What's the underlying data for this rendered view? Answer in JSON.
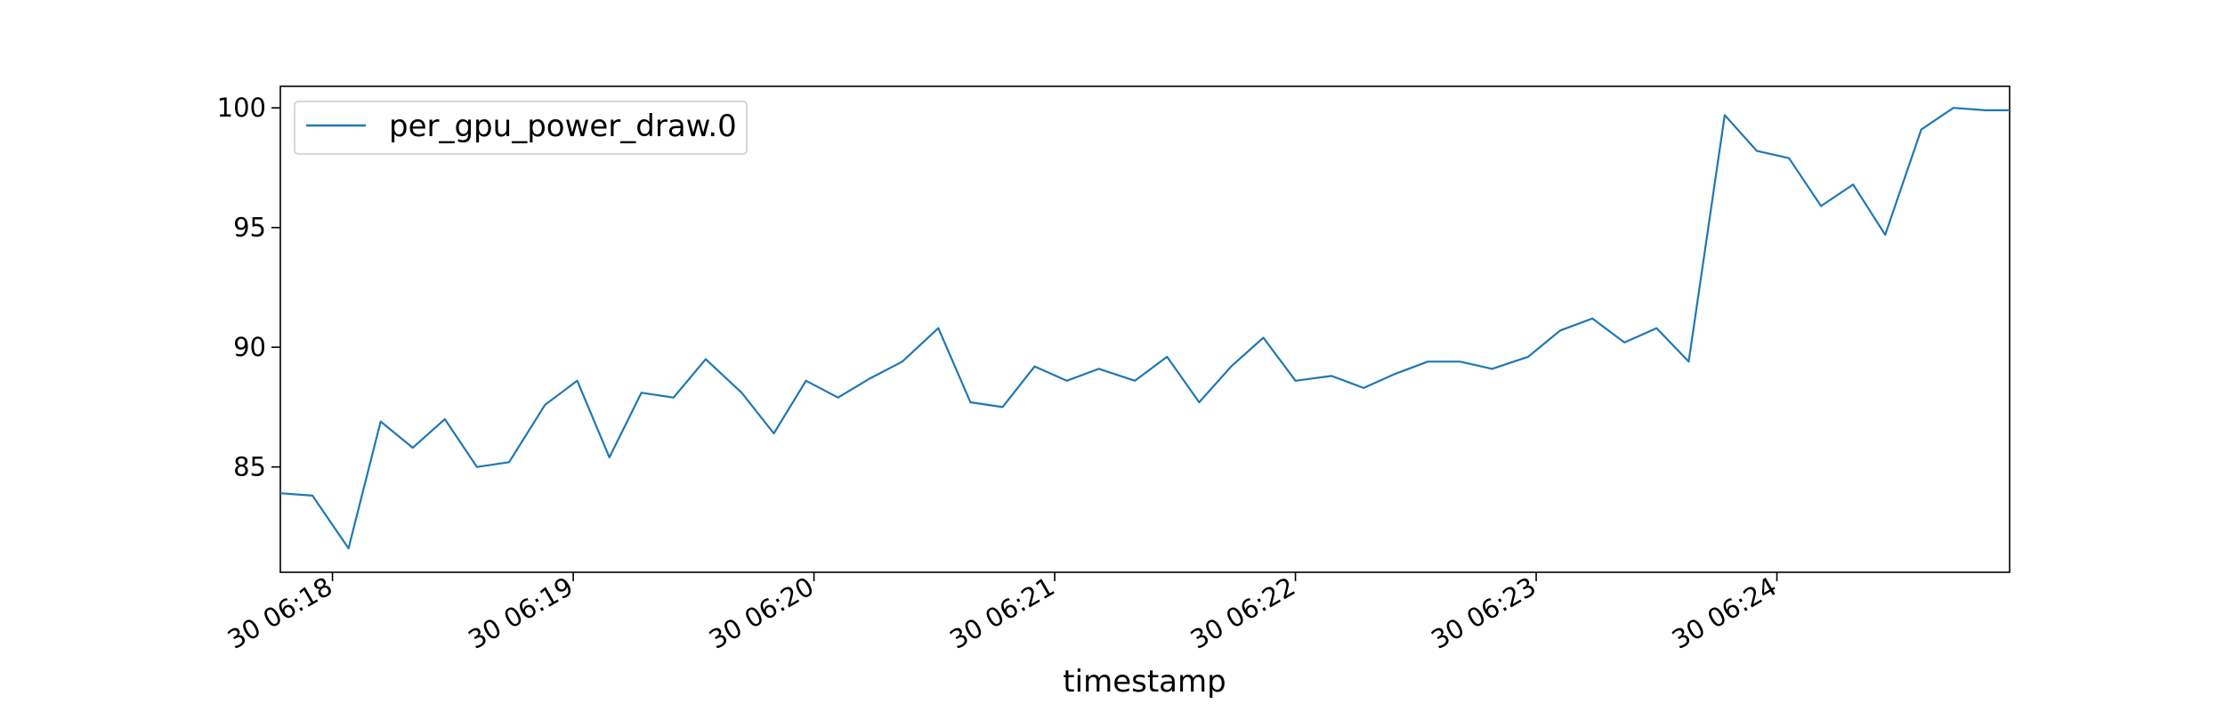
{
  "chart_data": {
    "type": "line",
    "title": "",
    "xlabel": "timestamp",
    "ylabel": "",
    "grid": false,
    "legend_placement": "top-left",
    "colors": {
      "series": "#1f77b4",
      "axes": "#000000",
      "background": "#ffffff"
    },
    "xlim": [
      "30 06:17:47",
      "30 06:24:58"
    ],
    "ylim": [
      80.6,
      100.9
    ],
    "x_ticks": [
      {
        "value": "30 06:18:00",
        "label": "30 06:18"
      },
      {
        "value": "30 06:19:00",
        "label": "30 06:19"
      },
      {
        "value": "30 06:20:00",
        "label": "30 06:20"
      },
      {
        "value": "30 06:21:00",
        "label": "30 06:21"
      },
      {
        "value": "30 06:22:00",
        "label": "30 06:22"
      },
      {
        "value": "30 06:23:00",
        "label": "30 06:23"
      },
      {
        "value": "30 06:24:00",
        "label": "30 06:24"
      }
    ],
    "y_ticks": [
      {
        "value": 85,
        "label": "85"
      },
      {
        "value": 90,
        "label": "90"
      },
      {
        "value": 95,
        "label": "95"
      },
      {
        "value": 100,
        "label": "100"
      }
    ],
    "series": [
      {
        "name": "per_gpu_power_draw.0",
        "color": "#1f77b4",
        "x": [
          "30 06:17:47",
          "30 06:17:55",
          "30 06:18:04",
          "30 06:18:12",
          "30 06:18:20",
          "30 06:18:28",
          "30 06:18:36",
          "30 06:18:44",
          "30 06:18:53",
          "30 06:19:01",
          "30 06:19:09",
          "30 06:19:17",
          "30 06:19:25",
          "30 06:19:33",
          "30 06:19:42",
          "30 06:19:50",
          "30 06:19:58",
          "30 06:20:06",
          "30 06:20:14",
          "30 06:20:22",
          "30 06:20:31",
          "30 06:20:39",
          "30 06:20:47",
          "30 06:20:55",
          "30 06:21:03",
          "30 06:21:11",
          "30 06:21:20",
          "30 06:21:28",
          "30 06:21:36",
          "30 06:21:44",
          "30 06:21:52",
          "30 06:22:00",
          "30 06:22:09",
          "30 06:22:17",
          "30 06:22:25",
          "30 06:22:33",
          "30 06:22:41",
          "30 06:22:49",
          "30 06:22:58",
          "30 06:23:06",
          "30 06:23:14",
          "30 06:23:22",
          "30 06:23:30",
          "30 06:23:38",
          "30 06:23:47",
          "30 06:23:55",
          "30 06:24:03",
          "30 06:24:11",
          "30 06:24:19",
          "30 06:24:27",
          "30 06:24:36",
          "30 06:24:44",
          "30 06:24:52",
          "30 06:24:58"
        ],
        "values": [
          83.9,
          83.8,
          81.6,
          86.9,
          85.8,
          87.0,
          85.0,
          85.2,
          87.6,
          88.6,
          85.4,
          88.1,
          87.9,
          89.5,
          88.1,
          86.4,
          88.6,
          87.9,
          88.7,
          89.4,
          90.8,
          87.7,
          87.5,
          89.2,
          88.6,
          89.1,
          88.6,
          89.6,
          87.7,
          89.2,
          90.4,
          88.6,
          88.8,
          88.3,
          88.9,
          89.4,
          89.4,
          89.1,
          89.6,
          90.7,
          91.2,
          90.2,
          90.8,
          89.4,
          99.7,
          98.2,
          97.9,
          95.9,
          96.8,
          94.7,
          99.1,
          100.0,
          99.9,
          99.9
        ]
      }
    ]
  }
}
